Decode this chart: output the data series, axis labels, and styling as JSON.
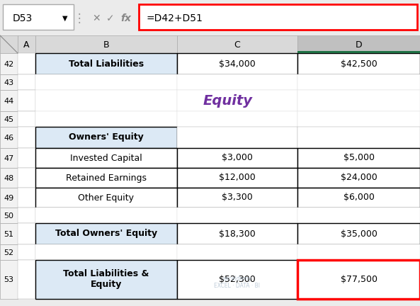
{
  "formula_bar_label": "D53",
  "formula_bar_text": "=D42+D51",
  "equity_title": "Equity",
  "equity_title_color": "#7030A0",
  "rows": [
    {
      "row": "42",
      "label": "Total Liabilities",
      "c": "$34,000",
      "d": "$42,500",
      "bold": true,
      "blue_b": true,
      "has_border": true,
      "d_red": false
    },
    {
      "row": "43",
      "label": "",
      "c": "",
      "d": "",
      "bold": false,
      "blue_b": false,
      "has_border": false,
      "d_red": false
    },
    {
      "row": "44",
      "label": "",
      "c": "",
      "d": "",
      "bold": false,
      "blue_b": false,
      "has_border": false,
      "d_red": false
    },
    {
      "row": "45",
      "label": "",
      "c": "",
      "d": "",
      "bold": false,
      "blue_b": false,
      "has_border": false,
      "d_red": false
    },
    {
      "row": "46",
      "label": "Owners' Equity",
      "c": "",
      "d": "",
      "bold": true,
      "blue_b": true,
      "has_border": true,
      "d_red": false,
      "b_only": true
    },
    {
      "row": "47",
      "label": "Invested Capital",
      "c": "$3,000",
      "d": "$5,000",
      "bold": false,
      "blue_b": false,
      "has_border": true,
      "d_red": false
    },
    {
      "row": "48",
      "label": "Retained Earnings",
      "c": "$12,000",
      "d": "$24,000",
      "bold": false,
      "blue_b": false,
      "has_border": true,
      "d_red": false
    },
    {
      "row": "49",
      "label": "Other Equity",
      "c": "$3,300",
      "d": "$6,000",
      "bold": false,
      "blue_b": false,
      "has_border": true,
      "d_red": false
    },
    {
      "row": "50",
      "label": "",
      "c": "",
      "d": "",
      "bold": false,
      "blue_b": false,
      "has_border": false,
      "d_red": false
    },
    {
      "row": "51",
      "label": "Total Owners' Equity",
      "c": "$18,300",
      "d": "$35,000",
      "bold": true,
      "blue_b": true,
      "has_border": true,
      "d_red": false
    },
    {
      "row": "52",
      "label": "",
      "c": "",
      "d": "",
      "bold": false,
      "blue_b": false,
      "has_border": false,
      "d_red": false
    },
    {
      "row": "53",
      "label": "Total Liabilities &\nEquity",
      "c": "$52,300",
      "d": "$77,500",
      "bold": true,
      "blue_b": true,
      "has_border": true,
      "d_red": true
    }
  ],
  "bg_color": "#EBEBEB",
  "cell_blue": "#DCE9F5",
  "cell_white": "#FFFFFF",
  "border_dark": "#000000",
  "border_light": "#AAAAAA",
  "header_bg": "#D9D9D9",
  "header_sel_bg": "#C0C0C0",
  "rownr_bg": "#F2F2F2",
  "formula_red": "#FF0000",
  "green_accent": "#217346"
}
